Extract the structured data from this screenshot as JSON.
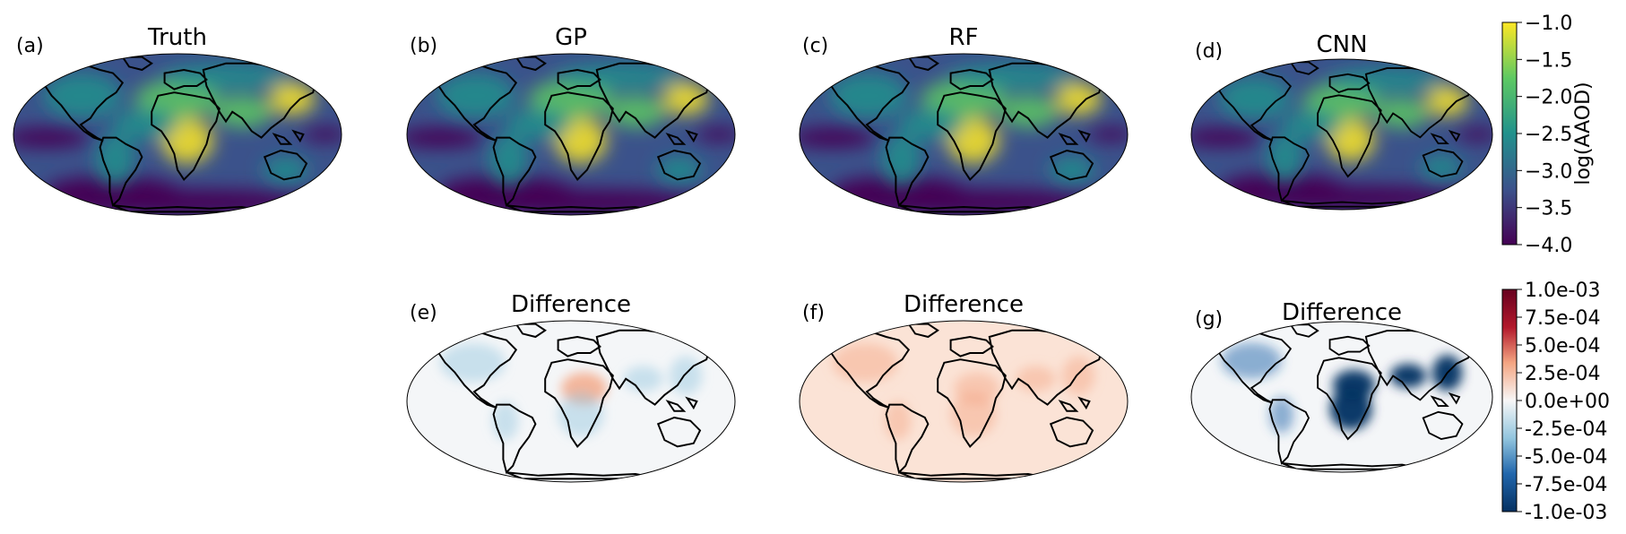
{
  "chart_data": {
    "type": "heatmap",
    "projection": "mollweide",
    "coastlines": true,
    "panels": [
      {
        "label": "(a)",
        "title": "Truth",
        "field": "aaod",
        "colormap": "viridis"
      },
      {
        "label": "(b)",
        "title": "GP",
        "field": "aaod",
        "colormap": "viridis"
      },
      {
        "label": "(c)",
        "title": "RF",
        "field": "aaod",
        "colormap": "viridis"
      },
      {
        "label": "(d)",
        "title": "CNN",
        "field": "aaod",
        "colormap": "viridis"
      },
      {
        "label": "(e)",
        "title": "Difference",
        "field": "difference",
        "colormap": "RdBu_r",
        "bias": 0.3
      },
      {
        "label": "(f)",
        "title": "Difference",
        "field": "difference",
        "colormap": "RdBu_r",
        "bias": 0.9
      },
      {
        "label": "(g)",
        "title": "Difference",
        "field": "difference",
        "colormap": "RdBu_r",
        "bias": -1.0
      }
    ],
    "colorbars": [
      {
        "name": "aaod",
        "label": "log(AAOD)",
        "range": [
          -4.0,
          -1.0
        ],
        "ticks": [
          "−1.0",
          "−1.5",
          "−2.0",
          "−2.5",
          "−3.0",
          "−3.5",
          "−4.0"
        ],
        "colormap": "viridis"
      },
      {
        "name": "difference",
        "label": "",
        "range": [
          -0.001,
          0.001
        ],
        "ticks": [
          "1.0e-03",
          "7.5e-04",
          "5.0e-04",
          "2.5e-04",
          "0.0e+00",
          "-2.5e-04",
          "-5.0e-04",
          "-7.5e-04",
          "-1.0e-03"
        ],
        "colormap": "RdBu_r"
      }
    ],
    "colors": {
      "viridis": [
        "#440154",
        "#3b528b",
        "#21918c",
        "#5ec962",
        "#fde725"
      ],
      "rdbu": [
        "#053061",
        "#2166ac",
        "#92c5de",
        "#f7f7f7",
        "#f4a582",
        "#b2182b",
        "#67001f"
      ],
      "coast": "#000000"
    }
  }
}
